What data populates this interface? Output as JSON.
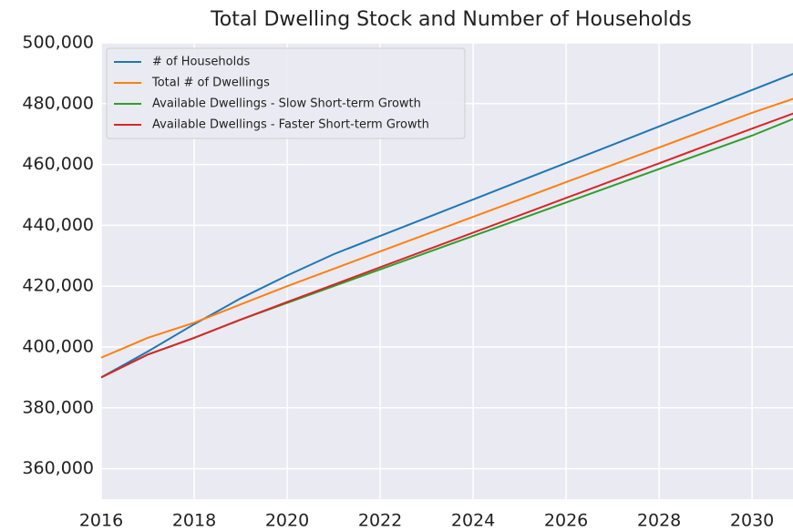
{
  "chart_data": {
    "type": "line",
    "title": "Total Dwelling Stock and Number of Households",
    "x": [
      2016,
      2017,
      2018,
      2019,
      2020,
      2021,
      2022,
      2023,
      2024,
      2025,
      2026,
      2027,
      2028,
      2029,
      2030,
      2031
    ],
    "series": [
      {
        "name": "# of Households",
        "color": "#1f77b4",
        "values": [
          390000,
          398500,
          407500,
          416000,
          423500,
          430500,
          436500,
          442500,
          448500,
          454500,
          460500,
          466500,
          472500,
          478500,
          484500,
          490500
        ]
      },
      {
        "name": "Total # of Dwellings",
        "color": "#ff7f0e",
        "values": [
          396500,
          403000,
          408000,
          414000,
          420000,
          425700,
          431400,
          437100,
          442800,
          448500,
          454200,
          459900,
          465600,
          471300,
          477000,
          482200
        ]
      },
      {
        "name": "Available Dwellings - Slow Short-term Growth",
        "color": "#2ca02c",
        "values": [
          390000,
          397500,
          403000,
          409000,
          414500,
          420000,
          425500,
          431000,
          436500,
          442000,
          447500,
          453000,
          458500,
          464000,
          469500,
          475700
        ]
      },
      {
        "name": "Available Dwellings - Faster Short-term Growth",
        "color": "#d62728",
        "values": [
          390000,
          397500,
          403000,
          409000,
          414800,
          420500,
          426200,
          431900,
          437600,
          443300,
          449000,
          454700,
          460400,
          466100,
          471800,
          477400
        ]
      }
    ],
    "xlim": [
      2016,
      2030.88
    ],
    "xticks": [
      2016,
      2018,
      2020,
      2022,
      2024,
      2026,
      2028,
      2030
    ],
    "ylim": [
      350000,
      500000
    ],
    "yticks": [
      {
        "value": 360000,
        "label": "360,000"
      },
      {
        "value": 380000,
        "label": "380,000"
      },
      {
        "value": 400000,
        "label": "400,000"
      },
      {
        "value": 420000,
        "label": "420,000"
      },
      {
        "value": 440000,
        "label": "440,000"
      },
      {
        "value": 460000,
        "label": "460,000"
      },
      {
        "value": 480000,
        "label": "480,000"
      },
      {
        "value": 500000,
        "label": "500,000"
      }
    ],
    "grid": true,
    "legend": "upper left"
  }
}
